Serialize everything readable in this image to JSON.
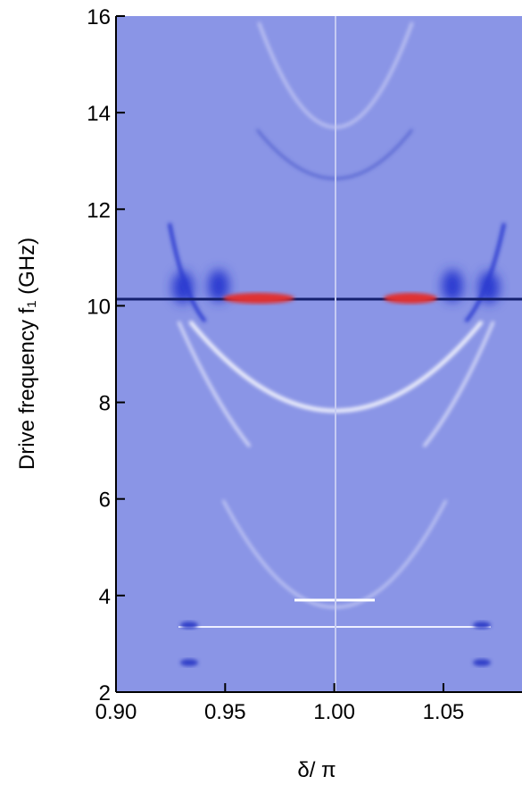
{
  "chart_data": {
    "type": "heatmap",
    "xlabel": "δ/ π",
    "ylabel": "Drive frequency f₁ (GHz)",
    "xlim": [
      0.9,
      1.086
    ],
    "ylim": [
      2,
      16
    ],
    "xticks": [
      {
        "value": 0.9,
        "label": "0.90"
      },
      {
        "value": 0.95,
        "label": "0.95"
      },
      {
        "value": 1.0,
        "label": "1.00"
      },
      {
        "value": 1.05,
        "label": "1.05"
      }
    ],
    "yticks": [
      2,
      4,
      6,
      8,
      10,
      12,
      14,
      16
    ],
    "color": "#8a95e6"
  }
}
